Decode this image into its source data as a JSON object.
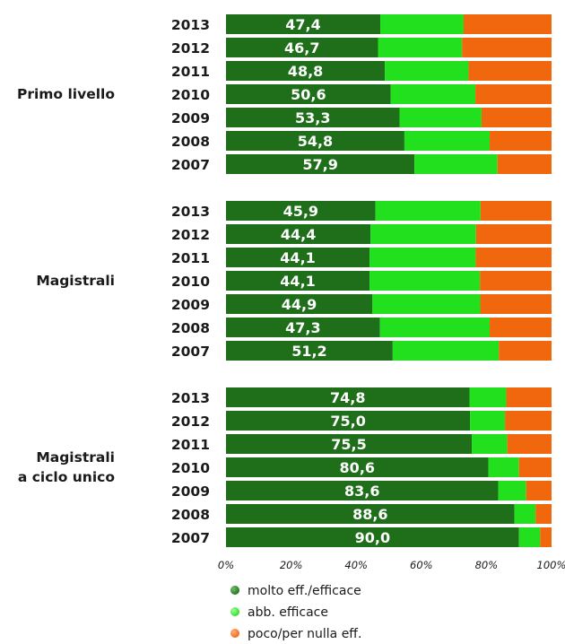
{
  "chart_data": {
    "type": "bar",
    "orientation": "horizontal",
    "stacked": true,
    "percent": true,
    "xlim": [
      0,
      100
    ],
    "x_ticks": [
      "0%",
      "20%",
      "40%",
      "60%",
      "80%",
      "100%"
    ],
    "grid": false,
    "legend_position": "bottom",
    "series": [
      {
        "name": "molto eff./efficace",
        "color": "#1e6e1a"
      },
      {
        "name": "abb. efficace",
        "color": "#22e01e"
      },
      {
        "name": "poco/per nulla eff.",
        "color": "#f0670e"
      }
    ],
    "groups": [
      {
        "label_lines": [
          "Primo livello"
        ],
        "bars": [
          {
            "year": "2013",
            "values": [
              47.4,
              25.6,
              27.0
            ],
            "label": "47,4"
          },
          {
            "year": "2012",
            "values": [
              46.7,
              25.8,
              27.5
            ],
            "label": "46,7"
          },
          {
            "year": "2011",
            "values": [
              48.8,
              25.7,
              25.5
            ],
            "label": "48,8"
          },
          {
            "year": "2010",
            "values": [
              50.6,
              26.0,
              23.4
            ],
            "label": "50,6"
          },
          {
            "year": "2009",
            "values": [
              53.3,
              25.2,
              21.5
            ],
            "label": "53,3"
          },
          {
            "year": "2008",
            "values": [
              54.8,
              26.2,
              19.0
            ],
            "label": "54,8"
          },
          {
            "year": "2007",
            "values": [
              57.9,
              25.5,
              16.6
            ],
            "label": "57,9"
          }
        ]
      },
      {
        "label_lines": [
          "Magistrali"
        ],
        "bars": [
          {
            "year": "2013",
            "values": [
              45.9,
              32.3,
              21.8
            ],
            "label": "45,9"
          },
          {
            "year": "2012",
            "values": [
              44.4,
              32.4,
              23.2
            ],
            "label": "44,4"
          },
          {
            "year": "2011",
            "values": [
              44.1,
              32.6,
              23.3
            ],
            "label": "44,1"
          },
          {
            "year": "2010",
            "values": [
              44.1,
              33.9,
              22.0
            ],
            "label": "44,1"
          },
          {
            "year": "2009",
            "values": [
              44.9,
              33.2,
              21.9
            ],
            "label": "44,9"
          },
          {
            "year": "2008",
            "values": [
              47.3,
              33.7,
              19.0
            ],
            "label": "47,3"
          },
          {
            "year": "2007",
            "values": [
              51.2,
              32.6,
              16.2
            ],
            "label": "51,2"
          }
        ]
      },
      {
        "label_lines": [
          "Magistrali",
          "a ciclo unico"
        ],
        "bars": [
          {
            "year": "2013",
            "values": [
              74.8,
              11.3,
              13.9
            ],
            "label": "74,8"
          },
          {
            "year": "2012",
            "values": [
              75.0,
              10.7,
              14.3
            ],
            "label": "75,0"
          },
          {
            "year": "2011",
            "values": [
              75.5,
              10.9,
              13.6
            ],
            "label": "75,5"
          },
          {
            "year": "2010",
            "values": [
              80.6,
              9.4,
              10.0
            ],
            "label": "80,6"
          },
          {
            "year": "2009",
            "values": [
              83.6,
              8.6,
              7.8
            ],
            "label": "83,6"
          },
          {
            "year": "2008",
            "values": [
              88.6,
              6.5,
              4.9
            ],
            "label": "88,6"
          },
          {
            "year": "2007",
            "values": [
              90.0,
              6.5,
              3.5
            ],
            "label": "90,0"
          }
        ]
      }
    ]
  }
}
